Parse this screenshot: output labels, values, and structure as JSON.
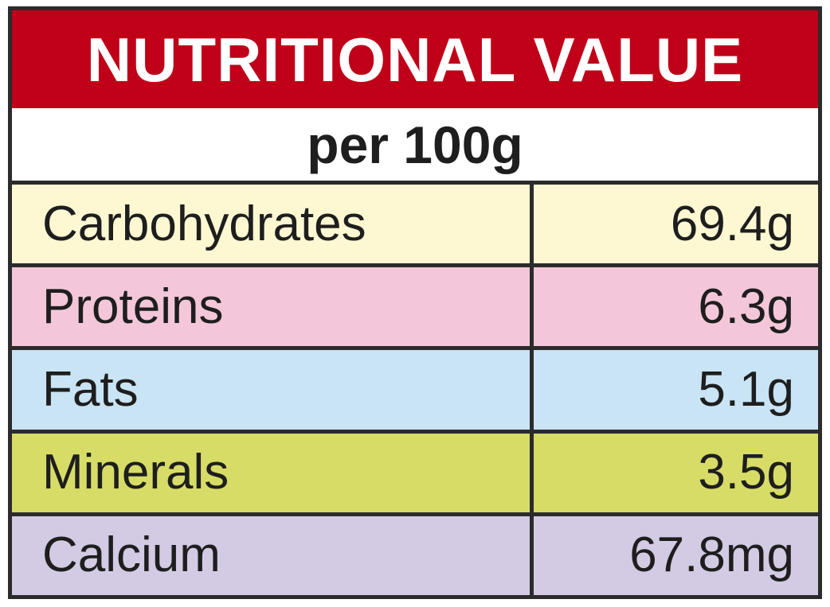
{
  "title": "NUTRITIONAL VALUE",
  "subtitle": "per 100g",
  "colors": {
    "title_background": "#c00018",
    "title_text": "#ffffff",
    "border": "#2b2b2b"
  },
  "nutrients": [
    {
      "name": "Carbohydrates",
      "value": "69.4g",
      "color": "#fdf8d2"
    },
    {
      "name": "Proteins",
      "value": "6.3g",
      "color": "#f3c7d9"
    },
    {
      "name": "Fats",
      "value": "5.1g",
      "color": "#c9e4f4"
    },
    {
      "name": "Minerals",
      "value": "3.5g",
      "color": "#d7dc67"
    },
    {
      "name": "Calcium",
      "value": "67.8mg",
      "color": "#d3cbe3"
    }
  ]
}
